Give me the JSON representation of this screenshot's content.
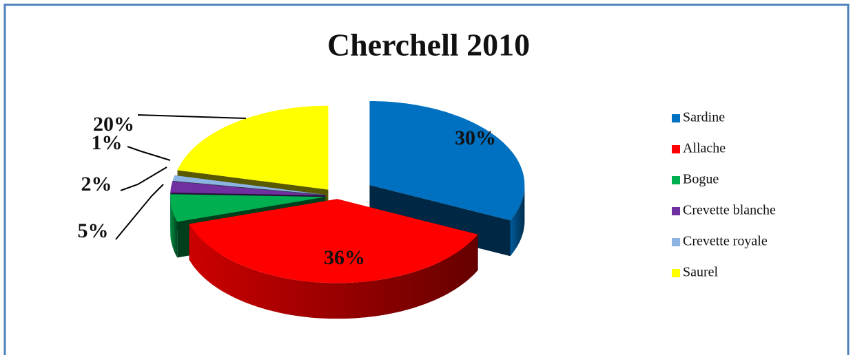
{
  "chart_data": {
    "type": "pie3d",
    "title": "Cherchell 2010",
    "categories": [
      "Sardine",
      "Allache",
      "Bogue",
      "Crevette blanche",
      "Crevette royale",
      "Saurel"
    ],
    "values": [
      30,
      36,
      5,
      2,
      1,
      20
    ],
    "value_labels": [
      "30%",
      "36%",
      "5%",
      "2%",
      "1%",
      "20%"
    ],
    "colors": [
      "#0070c0",
      "#ff0000",
      "#00b050",
      "#7030a0",
      "#8db3e2",
      "#ffff00"
    ],
    "legend": "right"
  }
}
